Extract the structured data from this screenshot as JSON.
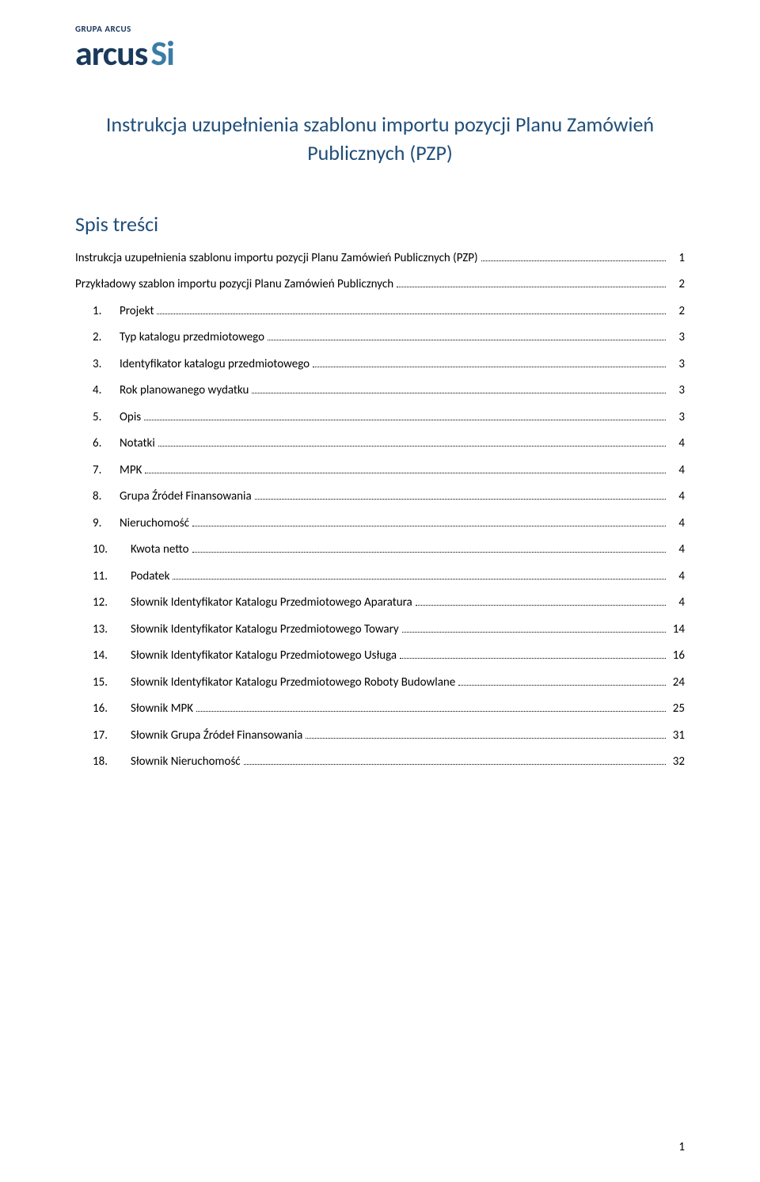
{
  "logo": {
    "small_text": "GRUPA ARCUS",
    "main_text": "arcus",
    "suffix_text": "Si"
  },
  "colors": {
    "logo_dark": "#1a3a5c",
    "logo_light": "#3a7ca8",
    "heading": "#1f4e79",
    "text": "#000000",
    "background": "#ffffff"
  },
  "title": "Instrukcja uzupełnienia szablonu importu pozycji Planu Zamówień Publicznych (PZP)",
  "toc_heading": "Spis treści",
  "toc": [
    {
      "level": 0,
      "num": "",
      "label": "Instrukcja uzupełnienia szablonu importu pozycji Planu Zamówień Publicznych (PZP)",
      "page": "1"
    },
    {
      "level": 0,
      "num": "",
      "label": "Przykładowy szablon importu pozycji Planu Zamówień Publicznych",
      "page": "2"
    },
    {
      "level": 1,
      "num": "1.",
      "label": "Projekt",
      "page": "2"
    },
    {
      "level": 1,
      "num": "2.",
      "label": "Typ katalogu przedmiotowego",
      "page": "3"
    },
    {
      "level": 1,
      "num": "3.",
      "label": "Identyfikator katalogu przedmiotowego",
      "page": "3"
    },
    {
      "level": 1,
      "num": "4.",
      "label": "Rok planowanego wydatku",
      "page": "3"
    },
    {
      "level": 1,
      "num": "5.",
      "label": "Opis",
      "page": "3"
    },
    {
      "level": 1,
      "num": "6.",
      "label": "Notatki",
      "page": "4"
    },
    {
      "level": 1,
      "num": "7.",
      "label": "MPK",
      "page": "4"
    },
    {
      "level": 1,
      "num": "8.",
      "label": "Grupa Źródeł Finansowania",
      "page": "4"
    },
    {
      "level": 1,
      "num": "9.",
      "label": "Nieruchomość",
      "page": "4"
    },
    {
      "level": 1,
      "num": "10.",
      "label": "Kwota netto",
      "page": "4"
    },
    {
      "level": 1,
      "num": "11.",
      "label": "Podatek",
      "page": "4"
    },
    {
      "level": 1,
      "num": "12.",
      "label": "Słownik Identyfikator Katalogu Przedmiotowego Aparatura",
      "page": "4"
    },
    {
      "level": 1,
      "num": "13.",
      "label": "Słownik Identyfikator Katalogu Przedmiotowego Towary",
      "page": "14"
    },
    {
      "level": 1,
      "num": "14.",
      "label": "Słownik Identyfikator Katalogu Przedmiotowego Usługa",
      "page": "16"
    },
    {
      "level": 1,
      "num": "15.",
      "label": "Słownik Identyfikator Katalogu Przedmiotowego Roboty Budowlane",
      "page": "24"
    },
    {
      "level": 1,
      "num": "16.",
      "label": "Słownik MPK",
      "page": "25"
    },
    {
      "level": 1,
      "num": "17.",
      "label": "Słownik Grupa Źródeł Finansowania",
      "page": "31"
    },
    {
      "level": 1,
      "num": "18.",
      "label": "Słownik Nieruchomość",
      "page": "32"
    }
  ],
  "page_number": "1"
}
